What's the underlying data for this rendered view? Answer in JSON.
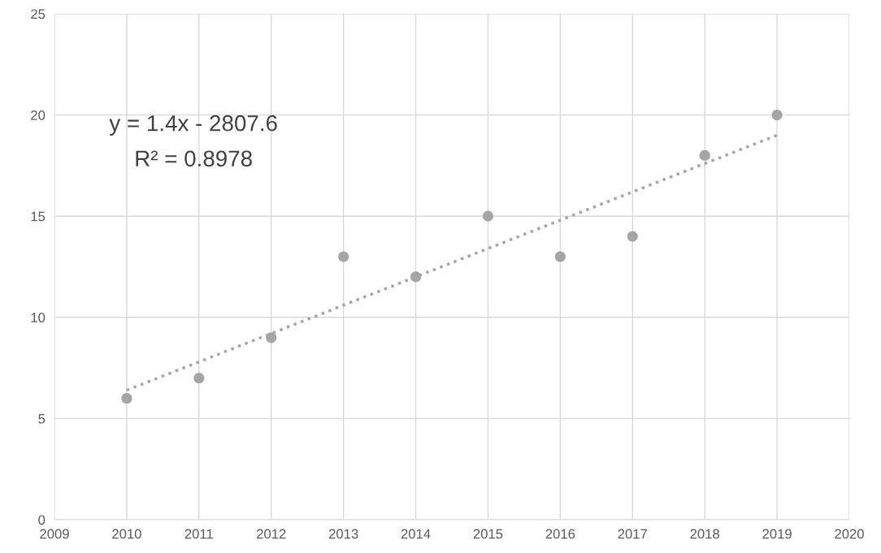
{
  "chart_data": {
    "type": "scatter",
    "x": [
      2010,
      2011,
      2012,
      2013,
      2014,
      2015,
      2016,
      2017,
      2018,
      2019
    ],
    "series": [
      {
        "color": "#a5a5a5",
        "marker": "circle",
        "values": [
          6,
          7,
          9,
          13,
          12,
          15,
          13,
          14,
          18,
          20
        ]
      },
      {
        "type": "line",
        "color": "#a5a5a5",
        "line_style": "dotted",
        "marker": "none",
        "x": [
          2010,
          2019
        ],
        "values": [
          6.4,
          19.0
        ]
      }
    ],
    "annotations": [
      "y = 1.4x - 2807.6",
      "R² = 0.8978"
    ],
    "xlim": [
      2009,
      2020
    ],
    "xticks": [
      2009,
      2010,
      2011,
      2012,
      2013,
      2014,
      2015,
      2016,
      2017,
      2018,
      2019,
      2020
    ],
    "ylim": [
      0,
      25
    ],
    "yticks": [
      0,
      5,
      10,
      15,
      20,
      25
    ],
    "grid": true,
    "legend": false
  }
}
